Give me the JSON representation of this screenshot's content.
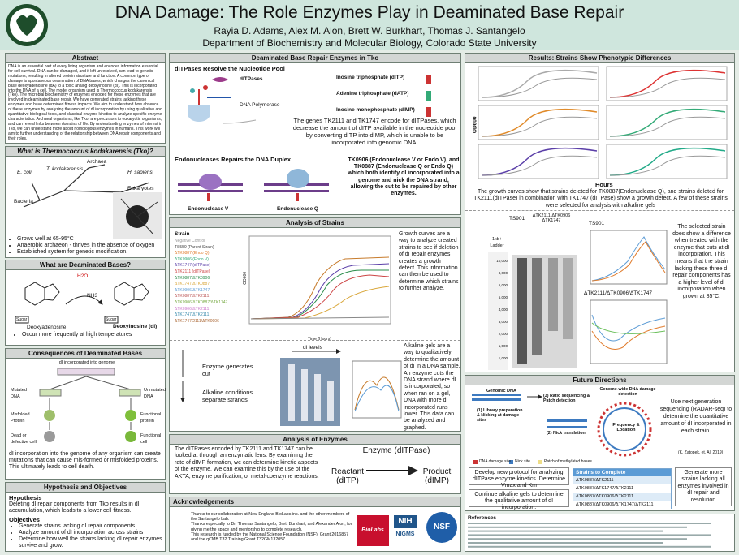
{
  "header": {
    "title": "DNA Damage: The Role Enzymes Play in Deaminated Base Repair",
    "authors": "Rayia D. Adams, Alex M. Alon, Brett W. Burkhart, Thomas J. Santangelo",
    "affiliation": "Department of Biochemistry and Molecular Biology, Colorado State University"
  },
  "abstract": {
    "heading": "Abstract",
    "text": "DNA is an essential part of every living organism and encodes information essential for cell survival. DNA can be damaged, and if left unresolved, can lead to genetic mutations, resulting in altered protein structure and function. A common type of damage is spontaneous deamination of DNA bases, which changes the canonical base deoxyadenosine (dA) to a toxic analog deoxyinosine (dI). This is incorporated into the DNA of a cell. The model organism used is Thermococcus kodakarensis (Tko). The microbial biochemistry of enzymes encoded for these enzymes that are involved in deaminated base repair. We have generated strains lacking these enzymes and have determined fitness impacts. We aim to understand how absence of these enzymes by analyzing the amount of dI incorporation by using qualitative and quantitative biological tools, and classical enzyme kinetics to analyze specific enzyme characteristics. Archaeal organisms, like Tko, are precursors to eukaryotic organisms, and can reveal links between domains of life. By understanding enzymes of interest in Tko, we can understand more about homologous enzymes in humans. This work will aim to further understanding of the relationship between DNA repair components and their roles."
  },
  "tko": {
    "heading": "What is Thermococcus kodakarensis (Tko)?",
    "labels": [
      "Archaea",
      "E. coli",
      "T. kodakarensis",
      "H. sapiens",
      "Eukaryotes",
      "Bacteria"
    ],
    "bullets": [
      "Grows well at 65-95°C",
      "Anaerobic archaeon - thrives in the absence of oxygen",
      "Established system for genetic modification."
    ]
  },
  "deam": {
    "heading": "What are Deaminated Bases?",
    "labels": [
      "H2O",
      "NH3",
      "Sugar",
      "Sugar",
      "Deoxyadenosine",
      "Deoxyinosine (dI)"
    ],
    "bullet": "Occur more frequently at high temperatures"
  },
  "consequences": {
    "heading": "Consequences of Deaminated Bases",
    "labels": [
      "dI incorporated into genome",
      "Mutated DNA",
      "Unmutated DNA",
      "Misfolded Protein",
      "Functional protein",
      "Dead or defective cell",
      "Functional cell"
    ],
    "text": "dI incorporation into the genome of any organism can create mutations that can cause mis-formed or misfolded proteins. This ultimately leads to cell death."
  },
  "hypothesis": {
    "heading": "Hypothesis and Objectives",
    "hyp_heading": "Hypothesis",
    "hyp_text": "Deleting dI repair components from Tko results in dI accumulation, which leads to a lower cell fitness.",
    "obj_heading": "Objectives",
    "objectives": [
      "Generate strains lacking dI repair components",
      "Analyze amount of dI incorporation across strains",
      "Determine how well the strains lacking dI repair enzymes survive and grow."
    ]
  },
  "repair": {
    "heading": "Deaminated Base Repair Enzymes in Tko",
    "ditpase_heading": "dITPases Resolve the Nucleotide Pool",
    "labels": [
      "dITPases",
      "DNA Polymerase",
      "Inosine triphosphate (dITP)",
      "Adenine triphosphate (dATP)",
      "Inosine monophosphate (dIMP)"
    ],
    "text": "The genes TK2111 and TK1747 encode for dITPases, which decrease the amount of dITP available in the nucleotide pool by converting dITP into dIMP, which is unable to be incorporated into genomic DNA.",
    "endo_heading": "Endonucleases Repairs the DNA Duplex",
    "endo_labels": [
      "Endonuclease V",
      "Endonuclease Q"
    ],
    "endo_text": "TK0906 (Endonuclease V or Endo V), and TK0887 (Endonuclease Q or Endo Q) which both identify dI incorporated into a genome and nick the DNA strand, allowing the cut to be repaired by other enzymes."
  },
  "strains": {
    "heading": "Analysis of Strains",
    "legend_title": "Strain",
    "legend": [
      "Negative Control",
      "TS559 (Parent Strain)",
      "ΔTK0887 (Endo Q)",
      "ΔTK0906 (Endo V)",
      "ΔTK1747 (dITPase)",
      "ΔTK2111 (dITPase)",
      "ΔTK0887/ΔTK0906",
      "ΔTK1747/ΔTK0887",
      "ΔTK0906/ΔTK1747",
      "ΔTK0887/ΔTK2111",
      "ΔTK0906/ΔTK0887/ΔTK1747",
      "ΔTK0906/ΔTK2111",
      "ΔTK1747/ΔTK2111",
      "ΔTK1747/2111/ΔTK0906"
    ],
    "xlabel": "Time (Hours)",
    "ylabel": "OD600",
    "text": "Growth curves are a way to analyze created strains to see if deletion of dI repair enzymes creates a growth defect. This information can then be used to determine which strains to further analyze."
  },
  "gel": {
    "labels": [
      "dI levels",
      "Enzyme generates cut",
      "Alkaline conditions separate strands"
    ],
    "text": "Alkaline gels are a way to qualitatively determine the amount of dI in a DNA sample. An enzyme cuts the DNA strand where dI is incorporated, so when ran on a gel, DNA with more dI incorporated runs lower. This data can be analyzed and graphed."
  },
  "enzymes": {
    "heading": "Analysis of Enzymes",
    "text": "The dITPases encoded by TK2111 and TK1747 can be looked at through an enzymatic lens. By examining the rate of dIMP formation, we can determine kinetic aspects of the enzyme. We can examine this by the use of the AKTA, enzyme purification, or metal-coenzyme reactions.",
    "enzyme": "Enzyme (dITPase)",
    "reactant": "Reactant (dITP)",
    "product": "Product (dIMP)"
  },
  "ack": {
    "heading": "Acknowledgements",
    "lines": [
      "Thanks to our collaboration at New England BioLabs inc. and the other members of the Santangelo Lab.",
      "Thanks especially to Dr. Thomas Santangelo, Brett Burkhart, and Alexander Alon, for giving me the space and mentorship to complete research.",
      "This research is funded by the National Science Foundation (NSF), Grant 2016857 and the qCMB T32 Training Grant T32GM132057."
    ],
    "logos": [
      "BioLabs",
      "NIH",
      "NIGMS",
      "NSF"
    ]
  },
  "results": {
    "heading": "Results: Strains Show Phenotypic Differences",
    "ylabel": "OD600",
    "xlabel": "Hours",
    "text": "The growth curves show that strains deleted for TK0887(Endonuclease Q), and strains deleted for TK2111(dITPase) in combination with TK1747 (dITPase) show a growth defect. A few of these strains were selected for analysis with alkaline gels",
    "gel_labels": [
      "TS901",
      "ΔTK2111 ΔTK0906 ΔTK1747",
      "1kb+ Ladder",
      "TS901",
      "ΔTK2111/ΔTK0906/ΔTK1747"
    ],
    "ladder": [
      "10,000",
      "8,000",
      "6,000",
      "5,000",
      "4,000",
      "3,000",
      "2,000",
      "1,500",
      "1,000"
    ],
    "text2": "The selected strain does show a difference when treated with the enzyme that cuts at dI incorporation. This means that the strain lacking these three dI repair components has a higher level of dI incorporation when grown at 85°C."
  },
  "future": {
    "heading": "Future Directions",
    "labels": [
      "Genomic DNA",
      "(1) Library preparation & Nicking at damage sites",
      "(2) Nick translation",
      "(3) Ratio sequencing & Patch detection",
      "Genome-wide DNA damage detection",
      "Frequency & Location",
      "DNA damage site",
      "Nick site",
      "Patch of methylated bases"
    ],
    "text": "Use next generation sequencing (RADAR-seq) to determine the quantitative amount of dI incorporated in each strain.",
    "citation": "(K. Zatopek, et. Al. 2019)",
    "boxes": [
      "Develop new protocol for analyzing dITPase enzyme kinetics. Determine Vmax and Km",
      "Continue alkaline gels to determine the qualitative amount of dI incorporation.",
      "Generate more strains lacking all enzymes involved in dI repair and resolution"
    ],
    "table": {
      "title": "Strains to Complete",
      "rows": [
        "ΔTK0887/ΔTK2111",
        "ΔTK0887/ΔTK1747/ΔTK2111",
        "ΔTK0887/ΔTK0906/ΔTK2111",
        "ΔTK0887/ΔTK0906/ΔTK1747/ΔTK2111"
      ]
    }
  },
  "references": {
    "heading": "References"
  }
}
